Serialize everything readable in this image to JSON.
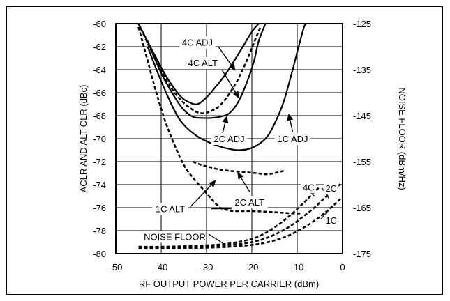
{
  "chart_data": {
    "type": "line",
    "xlabel": "RF OUTPUT POWER PER CARRIER (dBm)",
    "ylabel": "ACLR AND ALT CLR (dBc)",
    "y2label": "NOISE FLOOR (dBm/Hz)",
    "xlim": [
      -50,
      0
    ],
    "ylim": [
      -80,
      -60
    ],
    "y2lim": [
      -175,
      -125
    ],
    "xticks": [
      "-50",
      "-40",
      "-30",
      "-20",
      "-10",
      "0"
    ],
    "yticks": [
      "-60",
      "-62",
      "-64",
      "-66",
      "-68",
      "-70",
      "-72",
      "-74",
      "-76",
      "-78",
      "-80"
    ],
    "y2ticks": [
      "-125",
      "-135",
      "-145",
      "-155",
      "-165",
      "-175"
    ],
    "grid": true,
    "series": [
      {
        "name": "4C ADJ",
        "axis": "left",
        "style": "solid",
        "x": [
          -45,
          -42,
          -39,
          -36,
          -34,
          -32,
          -30,
          -28,
          -26,
          -24,
          -22,
          -20,
          -18.5
        ],
        "y": [
          -60,
          -62.3,
          -64.5,
          -66.2,
          -66.8,
          -67,
          -66.4,
          -65.5,
          -64.5,
          -63.3,
          -62,
          -60.7,
          -60
        ]
      },
      {
        "name": "4C ALT",
        "axis": "left",
        "style": "dashed",
        "x": [
          -45,
          -42,
          -39,
          -36,
          -33,
          -31,
          -29,
          -27,
          -25,
          -23,
          -21,
          -19.5,
          -18
        ],
        "y": [
          -60,
          -62.5,
          -64.8,
          -66.5,
          -67.5,
          -67.8,
          -67.6,
          -67.1,
          -66.1,
          -64.8,
          -63.1,
          -61.6,
          -60.2
        ]
      },
      {
        "name": "2C ADJ",
        "axis": "left",
        "style": "solid",
        "x": [
          -43,
          -40,
          -37,
          -35,
          -33,
          -31,
          -29,
          -27,
          -25,
          -23,
          -21,
          -19.5,
          -18.5,
          -17
        ],
        "y": [
          -61.5,
          -64.3,
          -66.4,
          -67.5,
          -68.1,
          -68.2,
          -68.2,
          -68.1,
          -67.8,
          -66.8,
          -65,
          -63.2,
          -61.5,
          -60
        ]
      },
      {
        "name": "1C ADJ",
        "axis": "left",
        "style": "solid",
        "x": [
          -43,
          -40,
          -37,
          -35,
          -32,
          -29,
          -26,
          -23,
          -20,
          -17,
          -15,
          -13,
          -11,
          -9.5,
          -8.5,
          -8
        ],
        "y": [
          -62,
          -65,
          -67.6,
          -68.8,
          -69.8,
          -70.4,
          -70.8,
          -71,
          -70.8,
          -70,
          -68.7,
          -66.8,
          -64,
          -61.7,
          -60.3,
          -60
        ]
      },
      {
        "name": "1C ALT",
        "axis": "left",
        "style": "dashed",
        "x": [
          -45,
          -43,
          -41,
          -39,
          -37,
          -35,
          -33,
          -31,
          -29,
          -27,
          -25.5,
          -24,
          -20,
          -15,
          -11,
          -9
        ],
        "y": [
          -60.3,
          -63.2,
          -66.1,
          -68.6,
          -70.6,
          -72.3,
          -73.4,
          -74.3,
          -75.2,
          -76,
          -76.2,
          -76.3,
          -76.3,
          -76.4,
          -76.5,
          -76.5
        ]
      },
      {
        "name": "2C ALT",
        "axis": "left",
        "style": "dashed",
        "x": [
          -33,
          -31,
          -29,
          -27,
          -25,
          -22,
          -19,
          -17,
          -15,
          -13
        ],
        "y": [
          -72,
          -72.3,
          -72.5,
          -72.7,
          -72.8,
          -72.9,
          -73,
          -73.1,
          -73,
          -72.8
        ]
      },
      {
        "name": "NOISE FLOOR 4C",
        "axis": "right",
        "style": "dashed",
        "x": [
          -45,
          -40,
          -35,
          -30,
          -25,
          -20,
          -17,
          -14,
          -11,
          -8,
          -5
        ],
        "y": [
          -173.5,
          -173.5,
          -173.4,
          -173.2,
          -172.8,
          -171.8,
          -170.5,
          -168.6,
          -166.2,
          -163.4,
          -160.4
        ]
      },
      {
        "name": "NOISE FLOOR 2C",
        "axis": "right",
        "style": "dashed",
        "x": [
          -45,
          -40,
          -35,
          -30,
          -25,
          -20,
          -16,
          -12,
          -9,
          -6,
          -3,
          0
        ],
        "y": [
          -173.7,
          -173.7,
          -173.6,
          -173.4,
          -173.1,
          -172.5,
          -171.3,
          -169.3,
          -167.2,
          -164.8,
          -162,
          -159.5
        ]
      },
      {
        "name": "NOISE FLOOR 1C",
        "axis": "right",
        "style": "dashed",
        "x": [
          -45,
          -40,
          -35,
          -30,
          -25,
          -20,
          -16,
          -12,
          -8,
          -5,
          -2,
          0
        ],
        "y": [
          -173.9,
          -173.9,
          -173.8,
          -173.7,
          -173.5,
          -173.1,
          -172.4,
          -171.1,
          -169,
          -167,
          -164.5,
          -162.6
        ]
      }
    ],
    "annotations": [
      {
        "text": "4C ADJ",
        "x": -32,
        "y": -61.6
      },
      {
        "text": "4C ALT",
        "x": -30.8,
        "y": -63.4
      },
      {
        "text": "2C ADJ",
        "x": -25,
        "y": -70
      },
      {
        "text": "1C ADJ",
        "x": -11,
        "y": -70
      },
      {
        "text": "2C ALT",
        "x": -20.5,
        "y": -75.5
      },
      {
        "text": "1C ALT",
        "x": -38,
        "y": -76.1
      },
      {
        "text": "4C",
        "x": -7.5,
        "y": -74.2
      },
      {
        "text": "2C",
        "x": -2.5,
        "y": -74.3
      },
      {
        "text": "1C",
        "x": -2.5,
        "y": -77.1
      },
      {
        "text": "NOISE FLOOR",
        "x": -37,
        "y": -78.5
      }
    ]
  }
}
